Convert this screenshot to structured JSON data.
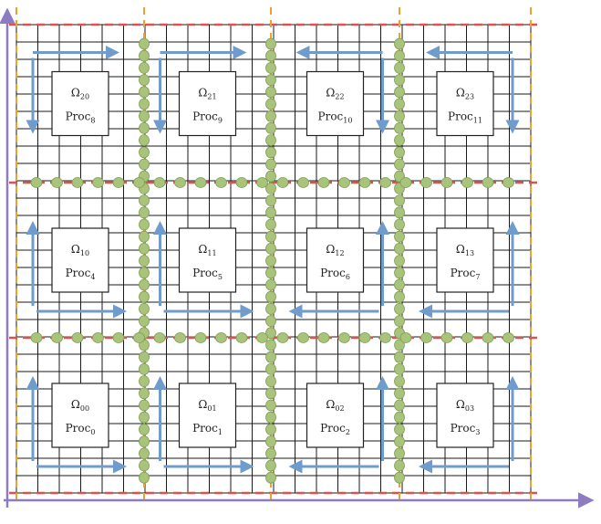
{
  "colors": {
    "grid": "#1a1a1a",
    "axis": "#8e7cc3",
    "cut_line": "#d9534f",
    "process_boundary": "#f0a030",
    "halo_node": "#a8c47a",
    "halo_node_stroke": "#7f9c55",
    "arrow": "#6f9ccc",
    "box_fill": "#ffffff",
    "box_stroke": "#222222"
  },
  "subdomains": [
    {
      "row": 2,
      "col": 0,
      "omega": "Ω",
      "omega_sub": "20",
      "proc": "Proc",
      "proc_sub": "8"
    },
    {
      "row": 2,
      "col": 1,
      "omega": "Ω",
      "omega_sub": "21",
      "proc": "Proc",
      "proc_sub": "9"
    },
    {
      "row": 2,
      "col": 2,
      "omega": "Ω",
      "omega_sub": "22",
      "proc": "Proc",
      "proc_sub": "10"
    },
    {
      "row": 2,
      "col": 3,
      "omega": "Ω",
      "omega_sub": "23",
      "proc": "Proc",
      "proc_sub": "11"
    },
    {
      "row": 1,
      "col": 0,
      "omega": "Ω",
      "omega_sub": "10",
      "proc": "Proc",
      "proc_sub": "4"
    },
    {
      "row": 1,
      "col": 1,
      "omega": "Ω",
      "omega_sub": "11",
      "proc": "Proc",
      "proc_sub": "5"
    },
    {
      "row": 1,
      "col": 2,
      "omega": "Ω",
      "omega_sub": "12",
      "proc": "Proc",
      "proc_sub": "6"
    },
    {
      "row": 1,
      "col": 3,
      "omega": "Ω",
      "omega_sub": "13",
      "proc": "Proc",
      "proc_sub": "7"
    },
    {
      "row": 0,
      "col": 0,
      "omega": "Ω",
      "omega_sub": "00",
      "proc": "Proc",
      "proc_sub": "0"
    },
    {
      "row": 0,
      "col": 1,
      "omega": "Ω",
      "omega_sub": "01",
      "proc": "Proc",
      "proc_sub": "1"
    },
    {
      "row": 0,
      "col": 2,
      "omega": "Ω",
      "omega_sub": "02",
      "proc": "Proc",
      "proc_sub": "2"
    },
    {
      "row": 0,
      "col": 3,
      "omega": "Ω",
      "omega_sub": "03",
      "proc": "Proc",
      "proc_sub": "3"
    }
  ]
}
